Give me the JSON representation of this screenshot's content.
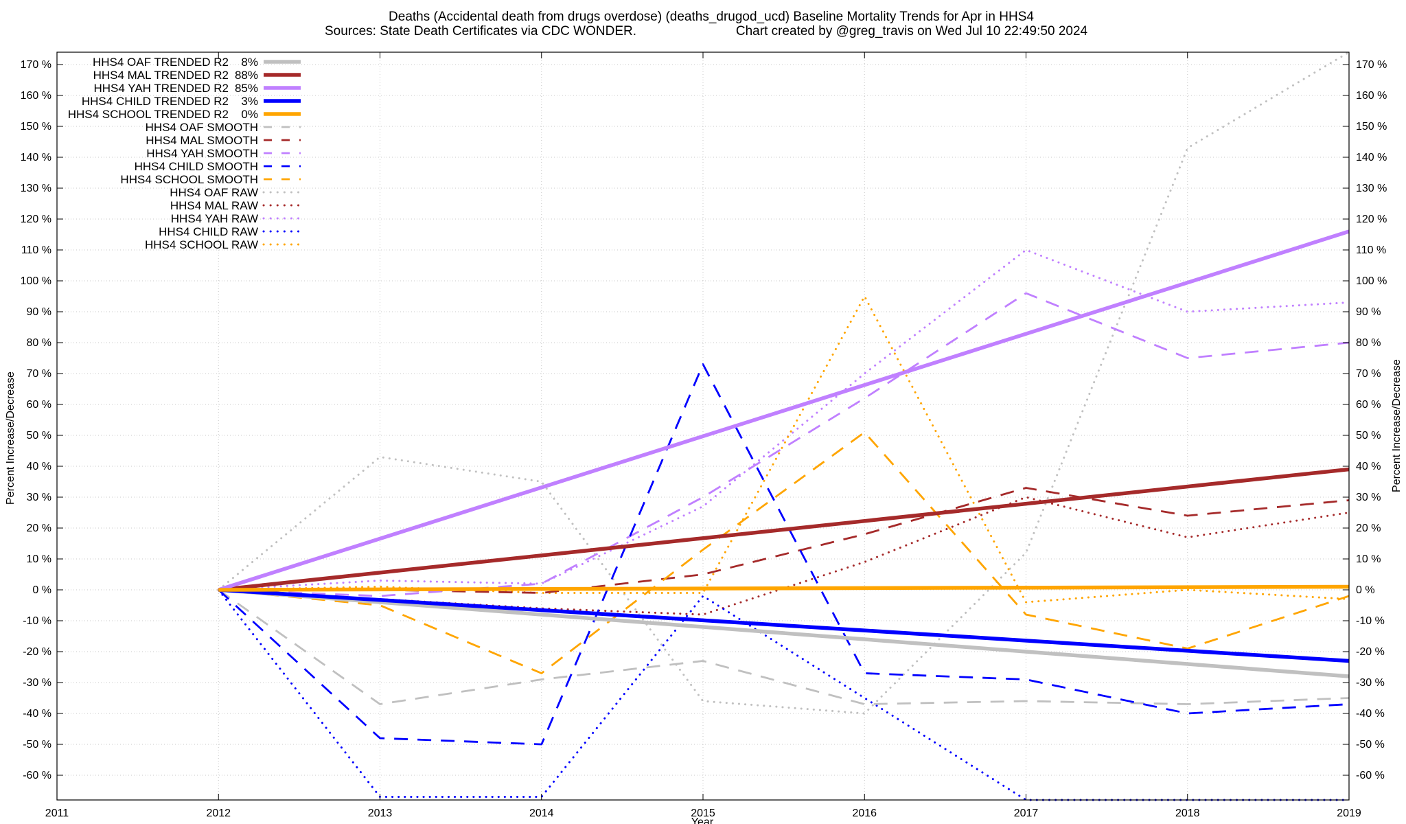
{
  "chart_data": {
    "type": "line",
    "title_line1": "Deaths (Accidental death from drugs overdose) (deaths_drugod_ucd)  Baseline Mortality Trends for Apr in HHS4",
    "title_line2_left": "Sources: State Death Certificates via CDC WONDER.",
    "title_line2_right": "Chart created by @greg_travis on Wed Jul 10 22:49:50 2024",
    "xlabel": "Year",
    "ylabel": "Percent Increase/Decrease",
    "xlim": [
      2011,
      2019
    ],
    "ylim": [
      -68,
      174
    ],
    "x_ticks": [
      2011,
      2012,
      2013,
      2014,
      2015,
      2016,
      2017,
      2018,
      2019
    ],
    "x_tick_labels": [
      "2011",
      "2012",
      "2013",
      "2014",
      "2015",
      "2016",
      "2017",
      "2018",
      "2019"
    ],
    "y_ticks": [
      -60,
      -50,
      -40,
      -30,
      -20,
      -10,
      0,
      10,
      20,
      30,
      40,
      50,
      60,
      70,
      80,
      90,
      100,
      110,
      120,
      130,
      140,
      150,
      160,
      170
    ],
    "y_tick_labels": [
      "-60 %",
      "-50 %",
      "-40 %",
      "-30 %",
      "-20 %",
      "-10 %",
      "0 %",
      "10 %",
      "20 %",
      "30 %",
      "40 %",
      "50 %",
      "60 %",
      "70 %",
      "80 %",
      "90 %",
      "100 %",
      "110 %",
      "120 %",
      "130 %",
      "140 %",
      "150 %",
      "160 %",
      "170 %"
    ],
    "grid": true,
    "legend_position": "top-left",
    "series": [
      {
        "name": "HHS4 OAF TRENDED R2",
        "r2": "8%",
        "style": "solid",
        "color": "#c0c0c0",
        "x": [
          2012,
          2019
        ],
        "y": [
          0,
          -28
        ]
      },
      {
        "name": "HHS4 MAL TRENDED R2",
        "r2": "88%",
        "style": "solid",
        "color": "#a52a2a",
        "x": [
          2012,
          2019
        ],
        "y": [
          0,
          39
        ]
      },
      {
        "name": "HHS4 YAH TRENDED R2",
        "r2": "85%",
        "style": "solid",
        "color": "#c080ff",
        "x": [
          2012,
          2019
        ],
        "y": [
          0,
          116
        ]
      },
      {
        "name": "HHS4 CHILD TRENDED R2",
        "r2": "3%",
        "style": "solid",
        "color": "#0000ff",
        "x": [
          2012,
          2019
        ],
        "y": [
          0,
          -23
        ]
      },
      {
        "name": "HHS4 SCHOOL TRENDED R2",
        "r2": "0%",
        "style": "solid",
        "color": "#ffa500",
        "x": [
          2012,
          2019
        ],
        "y": [
          0,
          1
        ]
      },
      {
        "name": "HHS4 OAF SMOOTH",
        "style": "dashed",
        "color": "#c0c0c0",
        "x": [
          2012,
          2013,
          2014,
          2015,
          2016,
          2017,
          2018,
          2019
        ],
        "y": [
          0,
          -37,
          -29,
          -23,
          -37,
          -36,
          -37,
          -35
        ]
      },
      {
        "name": "HHS4 MAL SMOOTH",
        "style": "dashed",
        "color": "#a52a2a",
        "x": [
          2012,
          2013,
          2014,
          2015,
          2016,
          2017,
          2018,
          2019
        ],
        "y": [
          0,
          0,
          -1,
          5,
          18,
          33,
          24,
          29
        ]
      },
      {
        "name": "HHS4 YAH SMOOTH",
        "style": "dashed",
        "color": "#c080ff",
        "x": [
          2012,
          2013,
          2014,
          2015,
          2016,
          2017,
          2018,
          2019
        ],
        "y": [
          0,
          -2,
          2,
          30,
          62,
          96,
          75,
          80
        ]
      },
      {
        "name": "HHS4 CHILD SMOOTH",
        "style": "dashed",
        "color": "#0000ff",
        "x": [
          2012,
          2013,
          2014,
          2015,
          2016,
          2017,
          2018,
          2019
        ],
        "y": [
          0,
          -48,
          -50,
          73,
          -27,
          -29,
          -40,
          -37
        ]
      },
      {
        "name": "HHS4 SCHOOL SMOOTH",
        "style": "dashed",
        "color": "#ffa500",
        "x": [
          2012,
          2013,
          2014,
          2015,
          2016,
          2017,
          2018,
          2019
        ],
        "y": [
          0,
          -5,
          -27,
          13,
          51,
          -8,
          -19,
          -2
        ]
      },
      {
        "name": "HHS4 OAF RAW",
        "style": "dotted",
        "color": "#c0c0c0",
        "x": [
          2012,
          2013,
          2014,
          2015,
          2016,
          2017,
          2018,
          2019
        ],
        "y": [
          0,
          43,
          35,
          -36,
          -40,
          12,
          143,
          174
        ]
      },
      {
        "name": "HHS4 MAL RAW",
        "style": "dotted",
        "color": "#a52a2a",
        "x": [
          2012,
          2013,
          2014,
          2015,
          2016,
          2017,
          2018,
          2019
        ],
        "y": [
          0,
          -3,
          -6,
          -8,
          9,
          30,
          17,
          25
        ]
      },
      {
        "name": "HHS4 YAH RAW",
        "style": "dotted",
        "color": "#c080ff",
        "x": [
          2012,
          2013,
          2014,
          2015,
          2016,
          2017,
          2018,
          2019
        ],
        "y": [
          0,
          3,
          2,
          27,
          70,
          110,
          90,
          93
        ]
      },
      {
        "name": "HHS4 CHILD RAW",
        "style": "dotted",
        "color": "#0000ff",
        "x": [
          2012,
          2013,
          2014,
          2015,
          2016,
          2017,
          2018,
          2019
        ],
        "y": [
          0,
          -67,
          -67,
          -2,
          -35,
          -68,
          -68,
          -68
        ]
      },
      {
        "name": "HHS4 SCHOOL RAW",
        "style": "dotted",
        "color": "#ffa500",
        "x": [
          2012,
          2013,
          2014,
          2015,
          2016,
          2017,
          2018,
          2019
        ],
        "y": [
          0,
          1,
          -1,
          -1,
          95,
          -4,
          0,
          -3
        ]
      }
    ]
  }
}
